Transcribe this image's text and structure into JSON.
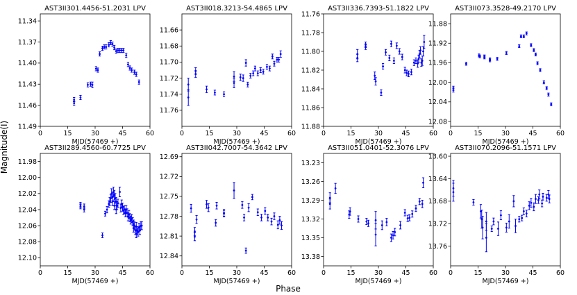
{
  "figure": {
    "ylabel": "Magnitude(I)",
    "xlabel": "Phase"
  },
  "colors": {
    "points": "#0000ff",
    "axes": "#000000",
    "background": "#ffffff"
  },
  "chart_data": [
    {
      "type": "scatter",
      "title": "AST3II301.4456-51.2031  LPV",
      "xlabel": "MJD(57469 +)",
      "xlim": [
        0,
        60
      ],
      "xticks": [
        0,
        15,
        30,
        45,
        60
      ],
      "ylim": [
        11.49,
        11.33
      ],
      "yticks": [
        11.34,
        11.37,
        11.4,
        11.43,
        11.46,
        11.49
      ],
      "ytick_labels": [
        "11.34",
        "11.37",
        "11.40",
        "11.43",
        "11.46",
        "11.49"
      ],
      "x": [
        18.5,
        18.5,
        22.0,
        26.0,
        27.5,
        28.5,
        30.5,
        31.5,
        32.5,
        34.0,
        35.0,
        36.0,
        37.5,
        38.5,
        39.5,
        40.5,
        41.5,
        42.5,
        43.5,
        44.5,
        45.5,
        47.0,
        48.0,
        49.0,
        50.0,
        51.5,
        52.5,
        54.0
      ],
      "y": [
        11.452,
        11.457,
        11.449,
        11.431,
        11.43,
        11.431,
        11.408,
        11.41,
        11.387,
        11.379,
        11.377,
        11.377,
        11.374,
        11.371,
        11.373,
        11.378,
        11.383,
        11.382,
        11.382,
        11.382,
        11.382,
        11.389,
        11.402,
        11.407,
        11.41,
        11.413,
        11.416,
        11.427
      ],
      "yerr": [
        0.003,
        0.003,
        0.003,
        0.003,
        0.003,
        0.004,
        0.003,
        0.003,
        0.003,
        0.003,
        0.003,
        0.003,
        0.003,
        0.003,
        0.003,
        0.003,
        0.003,
        0.003,
        0.003,
        0.003,
        0.003,
        0.003,
        0.003,
        0.003,
        0.003,
        0.003,
        0.003,
        0.003
      ]
    },
    {
      "type": "scatter",
      "title": "AST3II018.3213-54.4865  LPV",
      "xlabel": "MJD(57469 +)",
      "xlim": [
        0,
        60
      ],
      "xticks": [
        0,
        15,
        30,
        45,
        60
      ],
      "ylim": [
        11.78,
        11.64
      ],
      "yticks": [
        11.66,
        11.68,
        11.7,
        11.72,
        11.74,
        11.76
      ],
      "ytick_labels": [
        "11.66",
        "11.68",
        "11.70",
        "11.72",
        "11.74",
        "11.76"
      ],
      "x": [
        3.5,
        3.5,
        7.5,
        7.5,
        13.5,
        18.0,
        23.0,
        28.5,
        28.5,
        32.0,
        33.5,
        35.0,
        36.0,
        37.5,
        39.0,
        40.0,
        41.5,
        43.0,
        44.5,
        46.5,
        48.0,
        49.5,
        50.5,
        52.0,
        53.0,
        54.0
      ],
      "y": [
        11.744,
        11.728,
        11.711,
        11.715,
        11.734,
        11.738,
        11.74,
        11.726,
        11.718,
        11.719,
        11.72,
        11.701,
        11.728,
        11.717,
        11.714,
        11.708,
        11.714,
        11.71,
        11.712,
        11.706,
        11.708,
        11.693,
        11.702,
        11.697,
        11.697,
        11.69
      ],
      "yerr": [
        0.01,
        0.008,
        0.004,
        0.004,
        0.004,
        0.003,
        0.003,
        0.006,
        0.006,
        0.004,
        0.004,
        0.004,
        0.003,
        0.003,
        0.003,
        0.003,
        0.003,
        0.003,
        0.003,
        0.003,
        0.003,
        0.003,
        0.003,
        0.003,
        0.003,
        0.004
      ]
    },
    {
      "type": "scatter",
      "title": "AST3II336.7393-51.1822  LPV",
      "xlabel": "MJD(57469 +)",
      "xlim": [
        0,
        60
      ],
      "xticks": [
        0,
        15,
        30,
        45,
        60
      ],
      "ylim": [
        11.88,
        11.76
      ],
      "yticks": [
        11.76,
        11.78,
        11.8,
        11.82,
        11.84,
        11.86,
        11.88
      ],
      "ytick_labels": [
        "11.76",
        "11.78",
        "11.80",
        "11.82",
        "11.84",
        "11.86",
        "11.88"
      ],
      "x": [
        18.5,
        18.5,
        23.0,
        23.0,
        28.0,
        28.5,
        31.5,
        32.5,
        34.0,
        36.0,
        37.0,
        38.5,
        40.0,
        41.5,
        43.0,
        44.5,
        45.5,
        46.5,
        48.0,
        49.5,
        50.5,
        51.5,
        52.0,
        52.5,
        53.0,
        53.5,
        54.0,
        54.5,
        55.0
      ],
      "y": [
        11.803,
        11.807,
        11.793,
        11.795,
        11.826,
        11.832,
        11.844,
        11.816,
        11.801,
        11.807,
        11.792,
        11.81,
        11.794,
        11.8,
        11.806,
        11.82,
        11.823,
        11.824,
        11.822,
        11.812,
        11.81,
        11.813,
        11.808,
        11.803,
        11.799,
        11.812,
        11.81,
        11.8,
        11.79
      ],
      "yerr": [
        0.005,
        0.004,
        0.003,
        0.003,
        0.004,
        0.004,
        0.003,
        0.003,
        0.003,
        0.003,
        0.003,
        0.003,
        0.003,
        0.003,
        0.003,
        0.003,
        0.003,
        0.003,
        0.003,
        0.003,
        0.003,
        0.004,
        0.004,
        0.004,
        0.004,
        0.004,
        0.005,
        0.005,
        0.007
      ]
    },
    {
      "type": "scatter",
      "title": "AST3II073.3528-49.2170  LPV",
      "xlabel": "MJD(57469 +)",
      "xlim": [
        0,
        60
      ],
      "xticks": [
        0,
        15,
        30,
        45,
        60
      ],
      "ylim": [
        12.09,
        11.86
      ],
      "yticks": [
        11.88,
        11.92,
        11.96,
        12.0,
        12.04,
        12.08
      ],
      "ytick_labels": [
        "11.88",
        "11.92",
        "11.96",
        "12.00",
        "12.04",
        "12.08"
      ],
      "x": [
        1.5,
        1.5,
        8.5,
        15.5,
        16.0,
        18.5,
        18.5,
        21.5,
        21.5,
        25.5,
        30.5,
        37.5,
        38.5,
        40.0,
        41.5,
        44.0,
        45.5,
        46.5,
        47.5,
        49.0,
        51.0,
        52.5,
        53.5,
        55.0
      ],
      "y": [
        12.012,
        12.016,
        11.962,
        11.945,
        11.947,
        11.947,
        11.949,
        11.953,
        11.955,
        11.952,
        11.94,
        11.926,
        11.906,
        11.906,
        11.9,
        11.924,
        11.934,
        11.943,
        11.961,
        11.975,
        12.0,
        12.012,
        12.025,
        12.045
      ],
      "yerr": [
        0.004,
        0.004,
        0.003,
        0.003,
        0.003,
        0.003,
        0.003,
        0.003,
        0.003,
        0.003,
        0.003,
        0.003,
        0.003,
        0.003,
        0.003,
        0.003,
        0.003,
        0.003,
        0.003,
        0.003,
        0.003,
        0.003,
        0.003,
        0.003
      ]
    },
    {
      "type": "scatter",
      "title": "AST3II289.4560-60.7725  LPV",
      "xlabel": "MJD(57469 +)",
      "xlim": [
        0,
        60
      ],
      "xticks": [
        0,
        15,
        30,
        45,
        60
      ],
      "ylim": [
        12.11,
        11.97
      ],
      "yticks": [
        11.98,
        12.0,
        12.02,
        12.04,
        12.06,
        12.08,
        12.1
      ],
      "ytick_labels": [
        "11.98",
        "12.00",
        "12.02",
        "12.04",
        "12.06",
        "12.08",
        "12.10"
      ],
      "x": [
        22.0,
        22.0,
        24.0,
        24.0,
        34.0,
        35.5,
        36.5,
        37.5,
        38.0,
        38.5,
        39.0,
        39.5,
        39.5,
        40.0,
        40.5,
        40.5,
        41.0,
        41.5,
        41.5,
        42.0,
        42.5,
        43.5,
        44.0,
        44.5,
        45.0,
        45.5,
        46.0,
        46.5,
        47.0,
        47.5,
        48.0,
        48.5,
        49.0,
        49.5,
        50.0,
        50.5,
        51.0,
        51.0,
        51.5,
        52.0,
        52.5,
        52.5,
        53.0,
        53.5,
        54.0,
        54.5,
        55.0,
        55.5
      ],
      "y": [
        12.034,
        12.036,
        12.036,
        12.04,
        12.072,
        12.045,
        12.04,
        12.033,
        12.03,
        12.026,
        12.02,
        12.024,
        12.03,
        12.018,
        12.022,
        12.035,
        12.026,
        12.03,
        12.04,
        12.035,
        12.032,
        12.018,
        12.038,
        12.033,
        12.037,
        12.041,
        12.04,
        12.044,
        12.04,
        12.044,
        12.049,
        12.046,
        12.05,
        12.053,
        12.051,
        12.055,
        12.058,
        12.063,
        12.06,
        12.066,
        12.061,
        12.07,
        12.066,
        12.068,
        12.062,
        12.066,
        12.06,
        12.06
      ],
      "yerr": [
        0.003,
        0.003,
        0.003,
        0.003,
        0.003,
        0.003,
        0.004,
        0.004,
        0.005,
        0.005,
        0.006,
        0.005,
        0.005,
        0.006,
        0.006,
        0.005,
        0.006,
        0.005,
        0.005,
        0.005,
        0.005,
        0.006,
        0.005,
        0.005,
        0.005,
        0.005,
        0.005,
        0.005,
        0.005,
        0.005,
        0.005,
        0.005,
        0.005,
        0.005,
        0.005,
        0.005,
        0.005,
        0.005,
        0.005,
        0.005,
        0.005,
        0.005,
        0.005,
        0.005,
        0.005,
        0.005,
        0.005,
        0.005
      ]
    },
    {
      "type": "scatter",
      "title": "AST3II042.7007-54.3642  LPV",
      "xlabel": "MJD(57469 +)",
      "xlim": [
        0,
        60
      ],
      "xticks": [
        0,
        15,
        30,
        45,
        60
      ],
      "ylim": [
        12.855,
        12.685
      ],
      "yticks": [
        12.69,
        12.72,
        12.75,
        12.78,
        12.81,
        12.84
      ],
      "ytick_labels": [
        "12.69",
        "12.72",
        "12.75",
        "12.78",
        "12.81",
        "12.84"
      ],
      "x": [
        5.0,
        7.0,
        7.0,
        8.0,
        13.5,
        14.5,
        18.5,
        19.0,
        23.0,
        23.0,
        28.5,
        33.0,
        34.0,
        35.0,
        36.5,
        38.5,
        41.5,
        43.5,
        45.5,
        47.0,
        49.0,
        50.5,
        52.5,
        53.5,
        54.5
      ],
      "y": [
        12.768,
        12.803,
        12.811,
        12.785,
        12.762,
        12.767,
        12.79,
        12.764,
        12.776,
        12.775,
        12.741,
        12.763,
        12.782,
        12.832,
        12.767,
        12.751,
        12.774,
        12.782,
        12.772,
        12.782,
        12.788,
        12.78,
        12.793,
        12.786,
        12.794
      ],
      "yerr": [
        0.006,
        0.006,
        0.006,
        0.006,
        0.006,
        0.006,
        0.005,
        0.005,
        0.005,
        0.005,
        0.012,
        0.005,
        0.005,
        0.004,
        0.006,
        0.004,
        0.005,
        0.005,
        0.005,
        0.005,
        0.005,
        0.005,
        0.006,
        0.006,
        0.006
      ]
    },
    {
      "type": "scatter",
      "title": "AST3II051.0401-52.3076  LPV",
      "xlabel": "MJD(57469 +)",
      "xlim": [
        0,
        60
      ],
      "xticks": [
        0,
        15,
        30,
        45,
        60
      ],
      "ylim": [
        13.395,
        13.215
      ],
      "yticks": [
        13.23,
        13.26,
        13.29,
        13.32,
        13.35,
        13.38
      ],
      "ytick_labels": [
        "13.23",
        "13.26",
        "13.29",
        "13.32",
        "13.35",
        "13.38"
      ],
      "x": [
        3.5,
        3.5,
        6.5,
        14.0,
        14.5,
        19.0,
        23.5,
        24.5,
        28.5,
        28.5,
        32.0,
        34.5,
        37.0,
        38.0,
        39.0,
        42.0,
        44.5,
        46.0,
        47.0,
        48.5,
        50.5,
        52.5,
        54.0,
        54.5
      ],
      "y": [
        13.286,
        13.296,
        13.271,
        13.313,
        13.308,
        13.32,
        13.324,
        13.327,
        13.322,
        13.345,
        13.33,
        13.325,
        13.35,
        13.346,
        13.341,
        13.33,
        13.31,
        13.319,
        13.318,
        13.312,
        13.303,
        13.292,
        13.296,
        13.262
      ],
      "yerr": [
        0.008,
        0.008,
        0.008,
        0.006,
        0.006,
        0.005,
        0.005,
        0.005,
        0.014,
        0.018,
        0.007,
        0.006,
        0.006,
        0.006,
        0.006,
        0.006,
        0.005,
        0.005,
        0.005,
        0.005,
        0.005,
        0.005,
        0.006,
        0.008
      ]
    },
    {
      "type": "scatter",
      "title": "AST3II070.2096-51.1571  LPV",
      "xlabel": "MJD(57469 +)",
      "xlim": [
        0,
        60
      ],
      "xticks": [
        0,
        15,
        30,
        45,
        60
      ],
      "ylim": [
        13.795,
        13.595
      ],
      "yticks": [
        13.6,
        13.64,
        13.68,
        13.72,
        13.76
      ],
      "ytick_labels": [
        "13.60",
        "13.64",
        "13.68",
        "13.72",
        "13.76"
      ],
      "x": [
        1.5,
        1.5,
        12.5,
        16.5,
        17.0,
        17.5,
        19.5,
        19.5,
        22.5,
        23.5,
        26.0,
        27.5,
        30.5,
        32.0,
        34.5,
        35.5,
        37.5,
        39.0,
        40.0,
        41.5,
        43.0,
        44.0,
        45.5,
        46.5,
        48.0,
        48.5,
        50.0,
        50.5,
        52.5,
        53.5,
        54.0
      ],
      "y": [
        13.657,
        13.664,
        13.682,
        13.698,
        13.712,
        13.727,
        13.716,
        13.745,
        13.729,
        13.716,
        13.729,
        13.705,
        13.727,
        13.716,
        13.68,
        13.724,
        13.712,
        13.71,
        13.698,
        13.702,
        13.688,
        13.683,
        13.69,
        13.676,
        13.678,
        13.668,
        13.684,
        13.672,
        13.674,
        13.668,
        13.676
      ],
      "yerr": [
        0.014,
        0.016,
        0.005,
        0.012,
        0.016,
        0.02,
        0.016,
        0.025,
        0.005,
        0.006,
        0.012,
        0.008,
        0.008,
        0.012,
        0.01,
        0.012,
        0.005,
        0.005,
        0.006,
        0.006,
        0.007,
        0.008,
        0.007,
        0.008,
        0.006,
        0.008,
        0.006,
        0.006,
        0.006,
        0.007,
        0.007
      ]
    }
  ]
}
